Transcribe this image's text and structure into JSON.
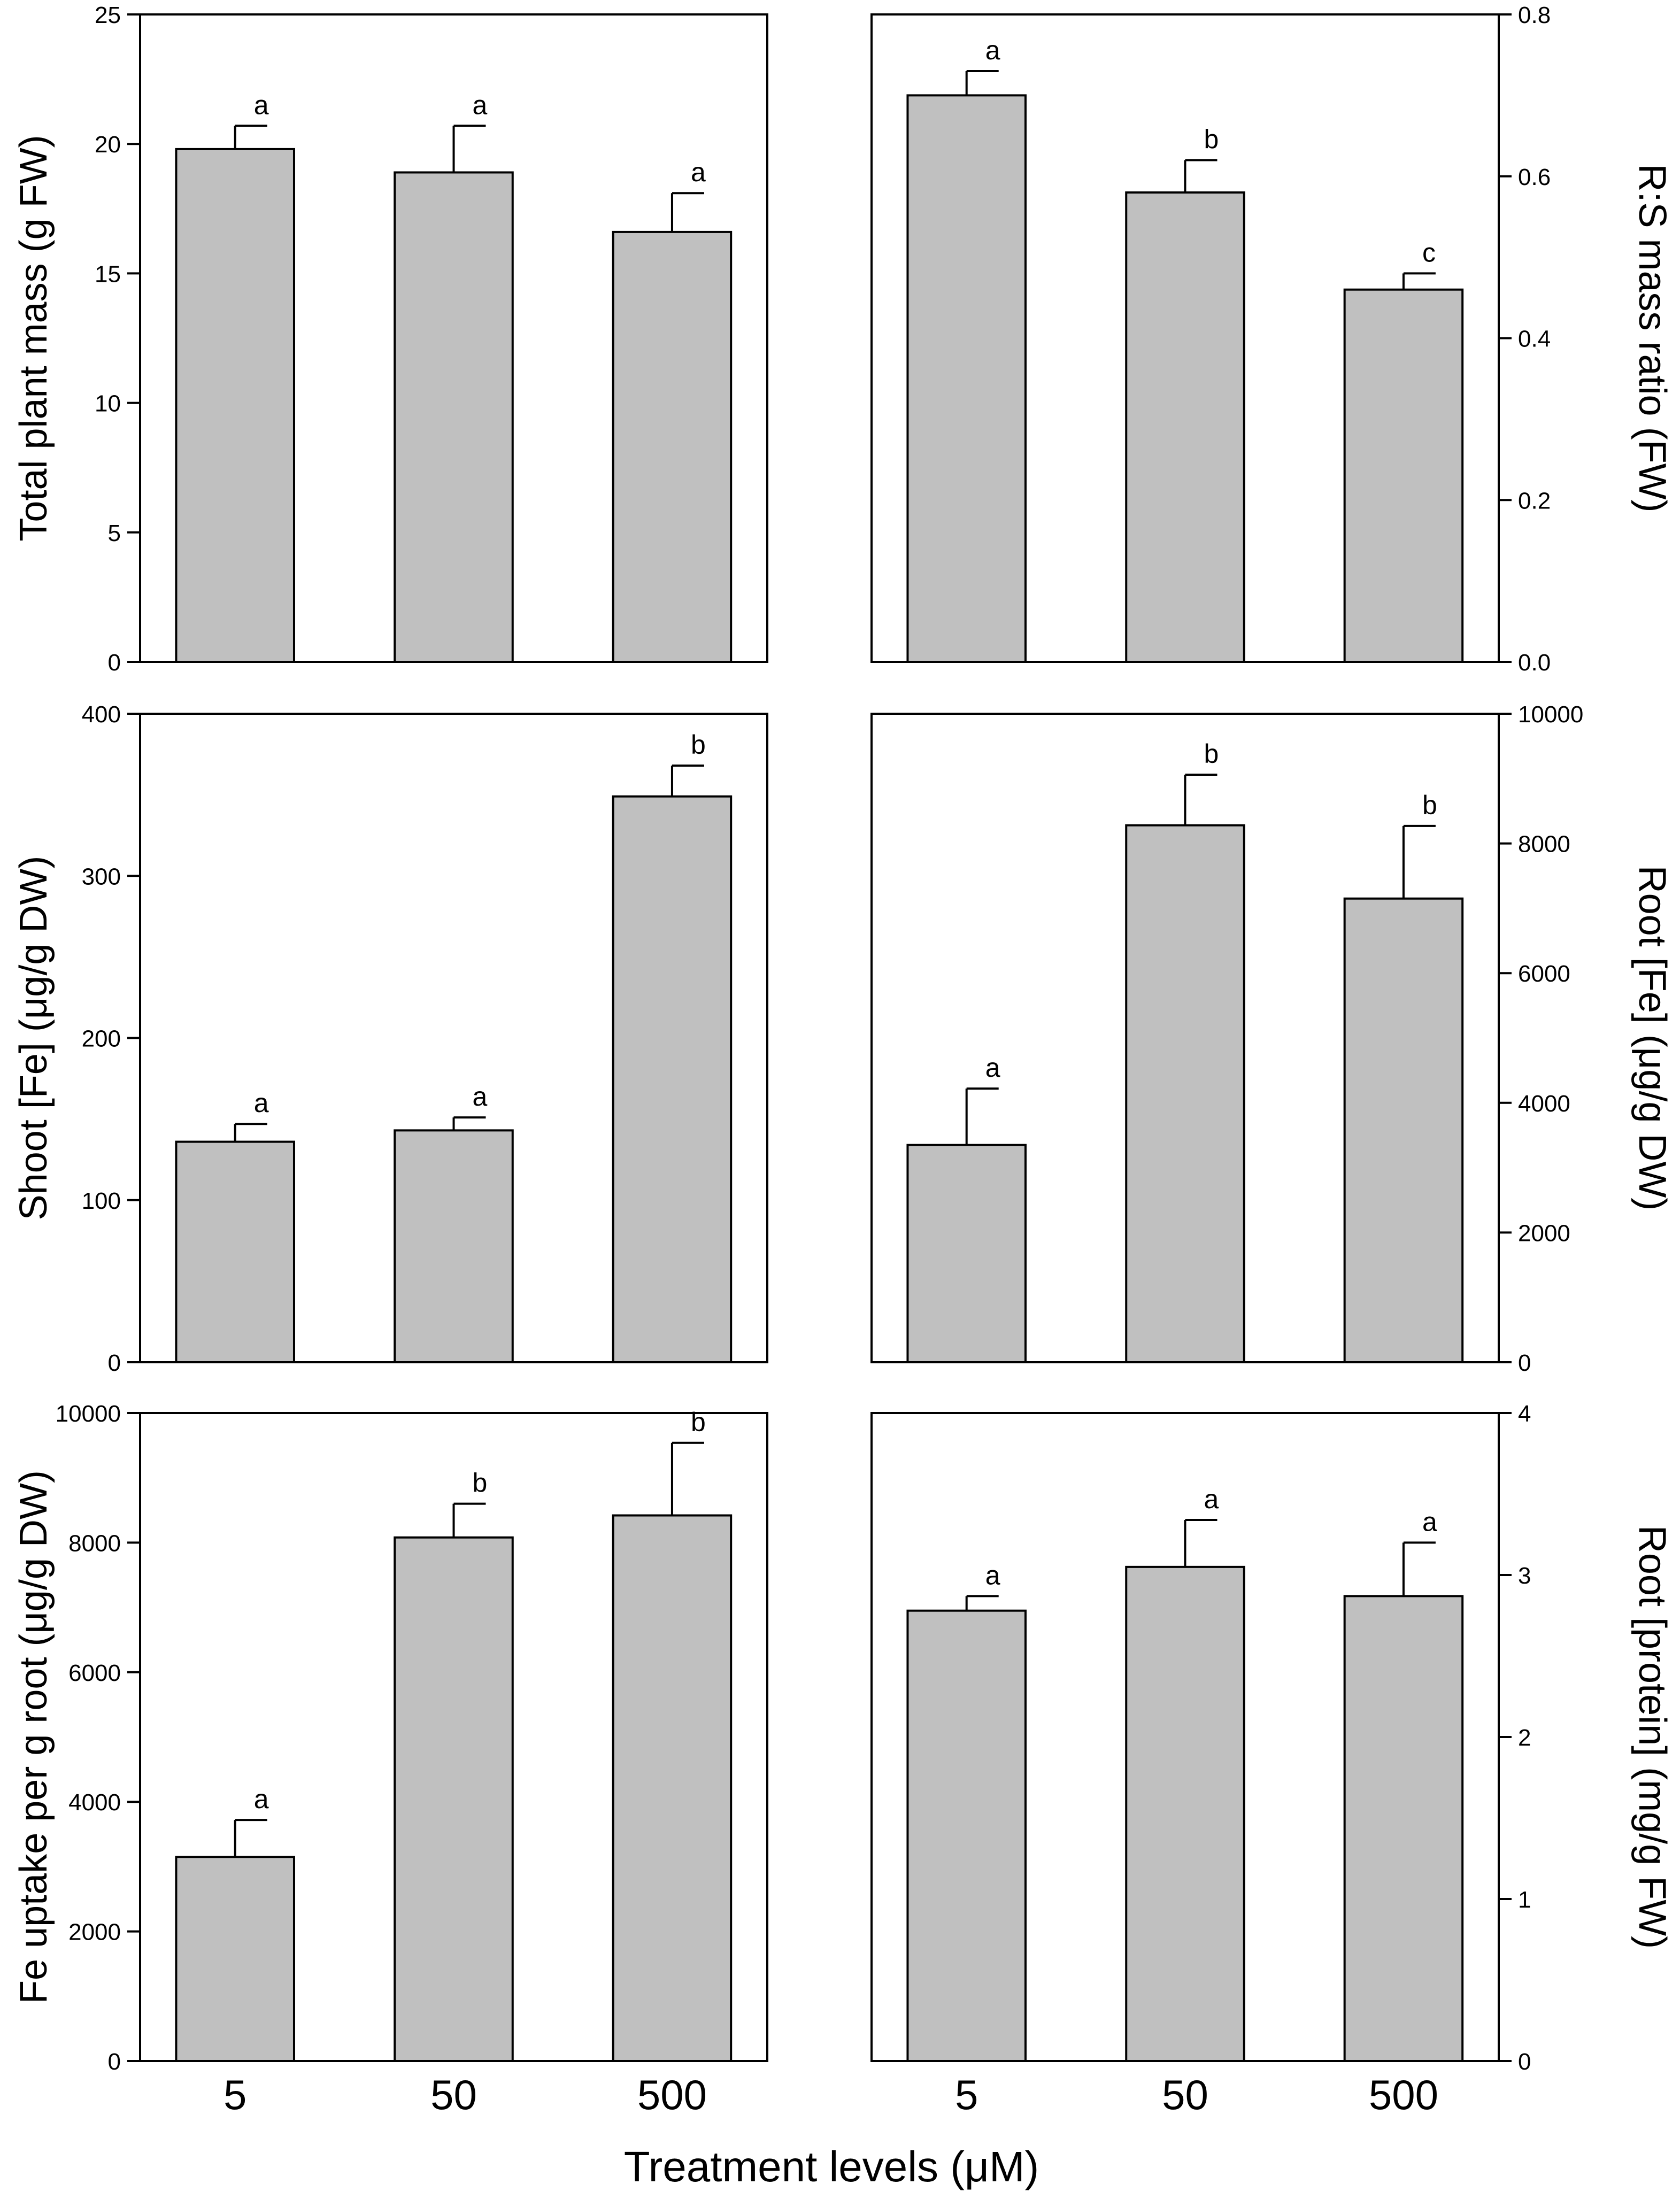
{
  "colors": {
    "bar": "#c0c0c0",
    "stroke": "#000000",
    "background": "#ffffff"
  },
  "figure": {
    "xlabel": "Treatment levels (μM)",
    "categories": [
      "5",
      "50",
      "500"
    ]
  },
  "chart_data": [
    {
      "id": "total-plant-mass",
      "type": "bar",
      "ylabel": "Total plant mass (g FW)",
      "axis_side": "left",
      "categories": [
        "5",
        "50",
        "500"
      ],
      "values": [
        19.8,
        18.9,
        16.6
      ],
      "errors": [
        0.9,
        1.8,
        1.5
      ],
      "letters": [
        "a",
        "a",
        "a"
      ],
      "ylim": [
        0,
        25
      ],
      "ticks": [
        0,
        5,
        10,
        15,
        20,
        25
      ],
      "tick_labels": [
        "0",
        "5",
        "10",
        "15",
        "20",
        "25"
      ]
    },
    {
      "id": "rs-mass-ratio",
      "type": "bar",
      "ylabel": "R:S mass ratio (FW)",
      "axis_side": "right",
      "categories": [
        "5",
        "50",
        "500"
      ],
      "values": [
        0.7,
        0.58,
        0.46
      ],
      "errors": [
        0.03,
        0.04,
        0.02
      ],
      "letters": [
        "a",
        "b",
        "c"
      ],
      "ylim": [
        0,
        0.8
      ],
      "ticks": [
        0,
        0.2,
        0.4,
        0.6,
        0.8
      ],
      "tick_labels": [
        "0.0",
        "0.2",
        "0.4",
        "0.6",
        "0.8"
      ]
    },
    {
      "id": "shoot-fe",
      "type": "bar",
      "ylabel": "Shoot [Fe] (μg/g DW)",
      "axis_side": "left",
      "categories": [
        "5",
        "50",
        "500"
      ],
      "values": [
        136,
        143,
        349
      ],
      "errors": [
        11,
        8,
        19
      ],
      "letters": [
        "a",
        "a",
        "b"
      ],
      "ylim": [
        0,
        400
      ],
      "ticks": [
        0,
        100,
        200,
        300,
        400
      ],
      "tick_labels": [
        "0",
        "100",
        "200",
        "300",
        "400"
      ]
    },
    {
      "id": "root-fe",
      "type": "bar",
      "ylabel": "Root [Fe] (μg/g DW)",
      "axis_side": "right",
      "categories": [
        "5",
        "50",
        "500"
      ],
      "values": [
        3350,
        8280,
        7150
      ],
      "errors": [
        870,
        780,
        1120
      ],
      "letters": [
        "a",
        "b",
        "b"
      ],
      "ylim": [
        0,
        10000
      ],
      "ticks": [
        0,
        2000,
        4000,
        6000,
        8000,
        10000
      ],
      "tick_labels": [
        "0",
        "2000",
        "4000",
        "6000",
        "8000",
        "10000"
      ]
    },
    {
      "id": "fe-uptake",
      "type": "bar",
      "ylabel": "Fe uptake per g root (μg/g DW)",
      "axis_side": "left",
      "categories": [
        "5",
        "50",
        "500"
      ],
      "values": [
        3150,
        8080,
        8420
      ],
      "errors": [
        570,
        520,
        1120
      ],
      "letters": [
        "a",
        "b",
        "b"
      ],
      "ylim": [
        0,
        10000
      ],
      "ticks": [
        0,
        2000,
        4000,
        6000,
        8000,
        10000
      ],
      "tick_labels": [
        "0",
        "2000",
        "4000",
        "6000",
        "8000",
        "10000"
      ]
    },
    {
      "id": "root-protein",
      "type": "bar",
      "ylabel": "Root [protein] (mg/g FW)",
      "axis_side": "right",
      "categories": [
        "5",
        "50",
        "500"
      ],
      "values": [
        2.78,
        3.05,
        2.87
      ],
      "errors": [
        0.09,
        0.29,
        0.33
      ],
      "letters": [
        "a",
        "a",
        "a"
      ],
      "ylim": [
        0,
        4
      ],
      "ticks": [
        0,
        1,
        2,
        3,
        4
      ],
      "tick_labels": [
        "0",
        "1",
        "2",
        "3",
        "4"
      ]
    }
  ]
}
